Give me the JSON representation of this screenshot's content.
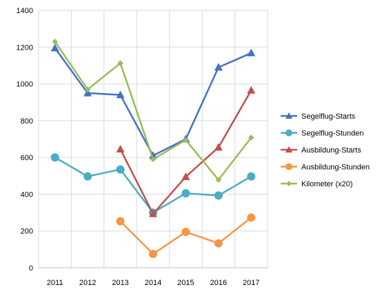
{
  "chart_data": {
    "type": "line",
    "title": "",
    "xlabel": "",
    "ylabel": "",
    "categories": [
      "2011",
      "2012",
      "2013",
      "2014",
      "2015",
      "2016",
      "2017"
    ],
    "ylim": [
      0,
      1400
    ],
    "yticks": [
      0,
      200,
      400,
      600,
      800,
      1000,
      1200,
      1400
    ],
    "grid": "vertical and horizontal gridlines on",
    "legend_position": "right",
    "series": [
      {
        "name": "Segelflug-Starts",
        "color": "#4472C4",
        "marker": "triangle",
        "values": [
          1195,
          950,
          940,
          610,
          700,
          1090,
          1168
        ]
      },
      {
        "name": "Segelflug-Stunden",
        "color": "#4BACC6",
        "marker": "circle",
        "values": [
          600,
          497,
          535,
          300,
          405,
          393,
          497
        ]
      },
      {
        "name": "Ausbildung-Starts",
        "color": "#C0504D",
        "marker": "triangle",
        "values": [
          null,
          null,
          645,
          293,
          495,
          655,
          965
        ]
      },
      {
        "name": "Ausbildung-Stunden",
        "color": "#F79646",
        "marker": "circle",
        "values": [
          null,
          null,
          253,
          75,
          195,
          133,
          273
        ]
      },
      {
        "name": "Kilometer (x20)",
        "color": "#9BBB59",
        "marker": "diamond",
        "values": [
          1230,
          970,
          1113,
          590,
          695,
          478,
          708
        ]
      }
    ]
  }
}
